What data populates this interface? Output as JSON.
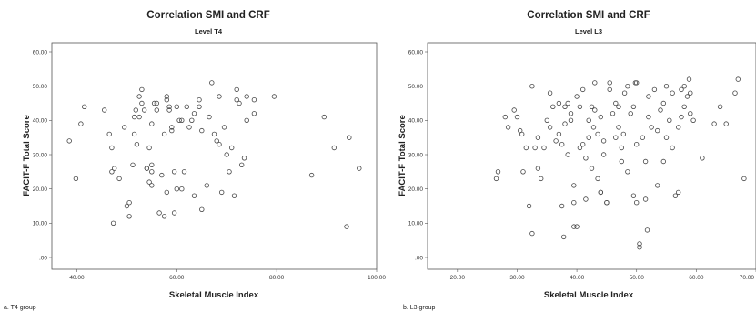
{
  "chart_data": [
    {
      "type": "scatter",
      "panel_caption": "a. T4 group",
      "title": "Correlation SMI and CRF",
      "subtitle": "Level T4",
      "xlabel": "Skeletal Muscle Index",
      "ylabel": "FACIT-F Total Score",
      "xlim": [
        35,
        100
      ],
      "ylim": [
        0,
        60
      ],
      "xticks": [
        40,
        60,
        80,
        100
      ],
      "xtick_labels": [
        "40.00",
        "60.00",
        "80.00",
        "100.00"
      ],
      "yticks": [
        0,
        10,
        20,
        30,
        40,
        50,
        60
      ],
      "ytick_labels": [
        ".00",
        "10.00",
        "20.00",
        "30.00",
        "40.00",
        "50.00",
        "60.00"
      ],
      "grid": false,
      "points": [
        [
          38.5,
          34
        ],
        [
          39.8,
          23
        ],
        [
          40.8,
          39
        ],
        [
          41.5,
          44
        ],
        [
          45.5,
          43
        ],
        [
          46.5,
          36
        ],
        [
          47,
          25
        ],
        [
          47,
          32
        ],
        [
          47.5,
          26
        ],
        [
          47.3,
          10
        ],
        [
          48.5,
          23
        ],
        [
          49.5,
          38
        ],
        [
          50,
          15
        ],
        [
          50.5,
          16
        ],
        [
          50.5,
          12
        ],
        [
          51.2,
          27
        ],
        [
          51.5,
          36
        ],
        [
          51.5,
          41
        ],
        [
          51.8,
          43
        ],
        [
          52,
          33
        ],
        [
          52.5,
          41
        ],
        [
          52.5,
          47
        ],
        [
          53,
          45
        ],
        [
          53,
          49
        ],
        [
          53.5,
          43
        ],
        [
          54,
          26
        ],
        [
          54,
          26
        ],
        [
          54.5,
          32
        ],
        [
          54.5,
          22
        ],
        [
          55,
          39
        ],
        [
          55,
          21
        ],
        [
          55.5,
          45
        ],
        [
          55,
          25
        ],
        [
          55,
          27
        ],
        [
          56,
          45
        ],
        [
          56,
          43
        ],
        [
          56.5,
          13
        ],
        [
          57,
          24
        ],
        [
          57.5,
          12
        ],
        [
          57.5,
          36
        ],
        [
          58,
          46
        ],
        [
          58,
          47
        ],
        [
          58,
          19
        ],
        [
          58.5,
          43
        ],
        [
          58.5,
          44
        ],
        [
          59,
          38
        ],
        [
          59,
          37
        ],
        [
          59.5,
          13
        ],
        [
          59.5,
          25
        ],
        [
          60,
          20
        ],
        [
          60,
          44
        ],
        [
          60.5,
          40
        ],
        [
          61,
          20
        ],
        [
          61,
          40
        ],
        [
          61.5,
          25
        ],
        [
          62,
          44
        ],
        [
          62.5,
          38
        ],
        [
          63,
          40
        ],
        [
          63.5,
          18
        ],
        [
          63.5,
          42
        ],
        [
          64.5,
          46
        ],
        [
          64.5,
          44
        ],
        [
          65,
          37
        ],
        [
          65,
          14
        ],
        [
          66,
          21
        ],
        [
          66.5,
          41
        ],
        [
          67,
          51
        ],
        [
          67.5,
          36
        ],
        [
          68,
          34
        ],
        [
          68.5,
          47
        ],
        [
          68.5,
          33
        ],
        [
          69,
          19
        ],
        [
          69.5,
          38
        ],
        [
          70,
          30
        ],
        [
          70.5,
          25
        ],
        [
          71,
          32
        ],
        [
          71.5,
          18
        ],
        [
          72,
          49
        ],
        [
          72,
          46
        ],
        [
          72.5,
          45
        ],
        [
          73,
          27
        ],
        [
          73.5,
          29
        ],
        [
          74,
          47
        ],
        [
          74,
          40
        ],
        [
          75.5,
          46
        ],
        [
          75.5,
          42
        ],
        [
          79.5,
          47
        ],
        [
          87,
          24
        ],
        [
          89.5,
          41
        ],
        [
          91.5,
          32
        ],
        [
          94,
          9
        ],
        [
          94.5,
          35
        ],
        [
          96.5,
          26
        ]
      ]
    },
    {
      "type": "scatter",
      "panel_caption": "b. L3 group",
      "title": "Correlation SMI and CRF",
      "subtitle": "Level L3",
      "xlabel": "Skeletal Muscle Index",
      "ylabel": "FACIT-F Total Score",
      "xlim": [
        15,
        70
      ],
      "ylim": [
        0,
        60
      ],
      "xticks": [
        20,
        30,
        40,
        50,
        60,
        70
      ],
      "xtick_labels": [
        "20.00",
        "30.00",
        "40.00",
        "50.00",
        "60.00",
        "70.00"
      ],
      "yticks": [
        0,
        10,
        20,
        30,
        40,
        50,
        60
      ],
      "ytick_labels": [
        ".00",
        "10.00",
        "20.00",
        "30.00",
        "40.00",
        "50.00",
        "60.00"
      ],
      "grid": false,
      "points": [
        [
          26.5,
          23
        ],
        [
          26.8,
          25
        ],
        [
          28,
          41
        ],
        [
          28.5,
          38
        ],
        [
          29.5,
          43
        ],
        [
          30,
          41
        ],
        [
          30.5,
          37
        ],
        [
          30.8,
          36
        ],
        [
          31,
          25
        ],
        [
          31.5,
          32
        ],
        [
          32,
          15
        ],
        [
          32.5,
          7
        ],
        [
          32.5,
          50
        ],
        [
          33,
          32
        ],
        [
          33.5,
          26
        ],
        [
          33.5,
          35
        ],
        [
          34,
          23
        ],
        [
          34.5,
          32
        ],
        [
          35,
          40
        ],
        [
          35.5,
          38
        ],
        [
          35.5,
          48
        ],
        [
          36,
          44
        ],
        [
          36.5,
          34
        ],
        [
          37,
          36
        ],
        [
          37,
          45
        ],
        [
          37.5,
          33
        ],
        [
          37.5,
          15
        ],
        [
          37.8,
          6
        ],
        [
          38,
          44
        ],
        [
          38,
          39
        ],
        [
          38.5,
          45
        ],
        [
          38.5,
          30
        ],
        [
          39,
          40
        ],
        [
          39,
          42
        ],
        [
          39.5,
          21
        ],
        [
          39.5,
          16
        ],
        [
          39.5,
          9
        ],
        [
          40,
          9
        ],
        [
          40,
          47
        ],
        [
          40.5,
          32
        ],
        [
          40.5,
          44
        ],
        [
          41,
          33
        ],
        [
          41,
          49
        ],
        [
          41.5,
          29
        ],
        [
          41.5,
          17
        ],
        [
          42,
          35
        ],
        [
          42,
          40
        ],
        [
          42.5,
          26
        ],
        [
          42.5,
          44
        ],
        [
          42.8,
          38
        ],
        [
          43,
          43
        ],
        [
          43,
          51
        ],
        [
          43.5,
          36
        ],
        [
          43.5,
          23
        ],
        [
          44,
          19
        ],
        [
          44,
          19
        ],
        [
          44,
          41
        ],
        [
          44.5,
          30
        ],
        [
          44.5,
          34
        ],
        [
          45,
          16
        ],
        [
          45,
          16
        ],
        [
          45.5,
          51
        ],
        [
          45.5,
          49
        ],
        [
          46,
          42
        ],
        [
          46.5,
          35
        ],
        [
          46.5,
          45
        ],
        [
          47,
          38
        ],
        [
          47,
          44
        ],
        [
          47.5,
          28
        ],
        [
          47.5,
          32
        ],
        [
          47.8,
          36
        ],
        [
          48,
          48
        ],
        [
          48.5,
          50
        ],
        [
          48.5,
          25
        ],
        [
          49,
          42
        ],
        [
          49.5,
          18
        ],
        [
          49.5,
          44
        ],
        [
          49.8,
          51
        ],
        [
          50,
          51
        ],
        [
          50,
          33
        ],
        [
          50,
          16
        ],
        [
          50.5,
          3
        ],
        [
          50.5,
          4
        ],
        [
          51,
          35
        ],
        [
          51.5,
          28
        ],
        [
          51.5,
          17
        ],
        [
          51.8,
          8
        ],
        [
          52,
          47
        ],
        [
          52,
          41
        ],
        [
          52.5,
          38
        ],
        [
          53,
          49
        ],
        [
          53.5,
          37
        ],
        [
          53.5,
          21
        ],
        [
          54,
          43
        ],
        [
          54.5,
          28
        ],
        [
          54.5,
          45
        ],
        [
          55,
          50
        ],
        [
          55,
          35
        ],
        [
          55.5,
          40
        ],
        [
          56,
          32
        ],
        [
          56,
          48
        ],
        [
          56.5,
          18
        ],
        [
          57,
          19
        ],
        [
          57,
          38
        ],
        [
          57.5,
          49
        ],
        [
          57.5,
          41
        ],
        [
          58,
          44
        ],
        [
          58,
          50
        ],
        [
          58.5,
          47
        ],
        [
          58.8,
          52
        ],
        [
          59,
          42
        ],
        [
          59,
          48
        ],
        [
          59.5,
          40
        ],
        [
          61,
          29
        ],
        [
          63,
          39
        ],
        [
          64,
          44
        ],
        [
          65,
          39
        ],
        [
          66.5,
          48
        ],
        [
          67,
          52
        ],
        [
          68,
          23
        ]
      ]
    }
  ]
}
